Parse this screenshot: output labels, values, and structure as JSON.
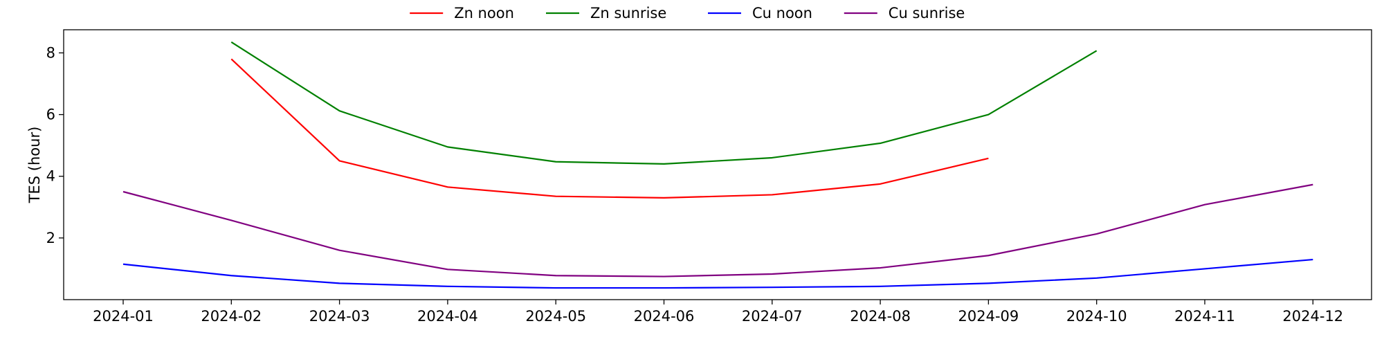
{
  "chart_data": {
    "type": "line",
    "title": "",
    "xlabel": "",
    "ylabel": "TES (hour)",
    "x": [
      "2024-01",
      "2024-02",
      "2024-03",
      "2024-04",
      "2024-05",
      "2024-06",
      "2024-07",
      "2024-08",
      "2024-09",
      "2024-10",
      "2024-11",
      "2024-12"
    ],
    "ylim": [
      0,
      8.75
    ],
    "yticks": [
      2,
      4,
      6,
      8
    ],
    "grid": false,
    "legend": "top-center",
    "series": [
      {
        "name": "Zn noon",
        "color": "#ff0000",
        "values": [
          null,
          7.8,
          4.5,
          3.65,
          3.35,
          3.3,
          3.4,
          3.75,
          4.58,
          null,
          null,
          null
        ]
      },
      {
        "name": "Zn sunrise",
        "color": "#008000",
        "values": [
          null,
          8.35,
          6.12,
          4.95,
          4.47,
          4.4,
          4.6,
          5.07,
          6.0,
          8.07,
          null,
          null
        ]
      },
      {
        "name": "Cu noon",
        "color": "#0000ff",
        "values": [
          1.15,
          0.78,
          0.53,
          0.43,
          0.38,
          0.38,
          0.4,
          0.43,
          0.53,
          0.7,
          1.0,
          1.3
        ]
      },
      {
        "name": "Cu sunrise",
        "color": "#800080",
        "values": [
          3.5,
          2.57,
          1.6,
          0.98,
          0.78,
          0.75,
          0.83,
          1.03,
          1.43,
          2.13,
          3.08,
          3.73
        ]
      }
    ]
  }
}
